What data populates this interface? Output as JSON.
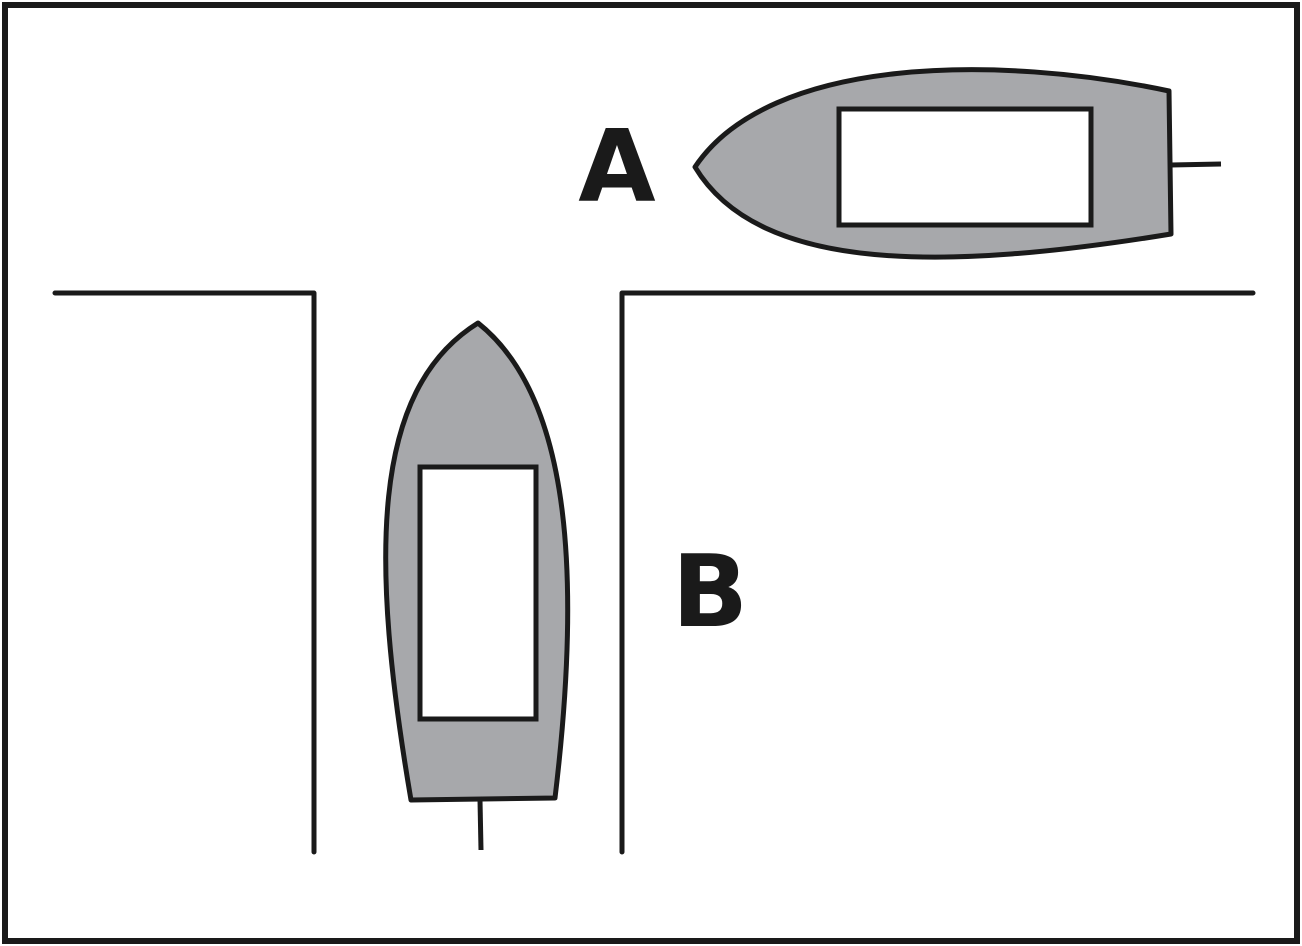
{
  "diagram": {
    "labels": {
      "boat_a": "A",
      "boat_b": "B"
    },
    "colors": {
      "hull_fill": "#a7a8ab",
      "stroke": "#1a1a1a",
      "cabin_fill": "#ffffff",
      "background": "#ffffff"
    }
  }
}
